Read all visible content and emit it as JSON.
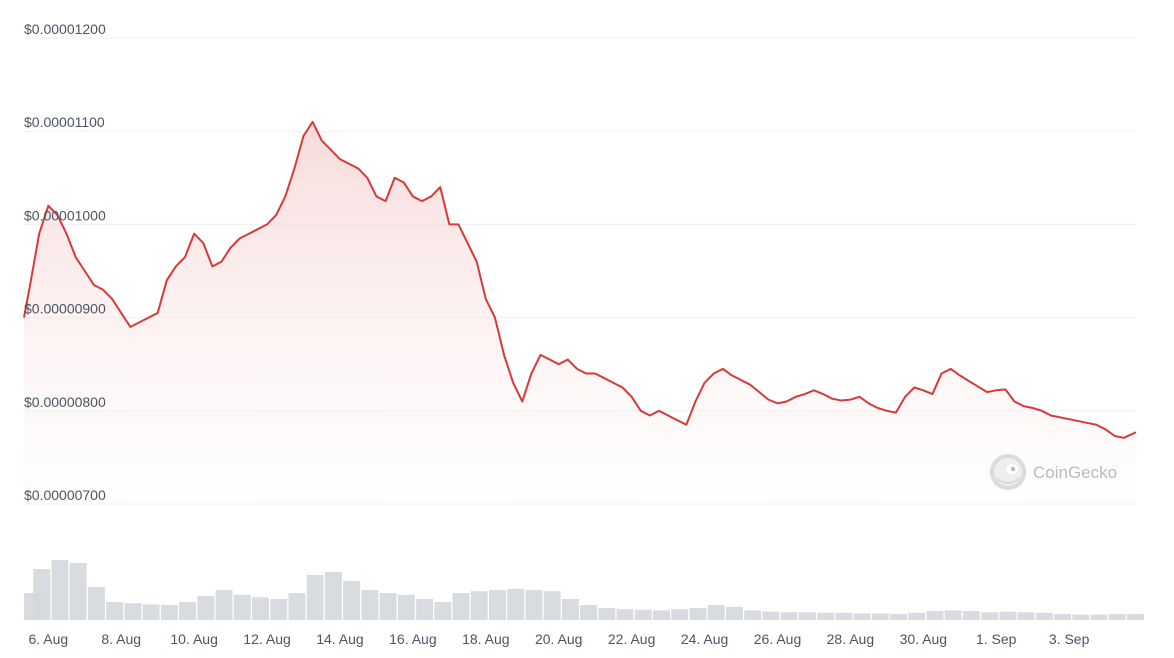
{
  "watermark": {
    "text": "CoinGecko",
    "icon": "coingecko-logo"
  },
  "colors": {
    "line": "#d63a3a",
    "area_top": "#f6d4d4",
    "volume": "#d4d7dc",
    "grid": "#eef0f3",
    "text": "#4b5563"
  },
  "chart_data": {
    "type": "area",
    "xaxis_type": "date",
    "y_tick_labels": [
      "$0.00001200",
      "$0.00001100",
      "$0.00001000",
      "$0.00000900",
      "$0.00000800",
      "$0.00000700"
    ],
    "y_tick_values": [
      1.2e-05,
      1.1e-05,
      1e-05,
      9e-06,
      8e-06,
      7e-06
    ],
    "ylim": [
      7e-06,
      1.2e-05
    ],
    "x_tick_labels": [
      "6. Aug",
      "8. Aug",
      "10. Aug",
      "12. Aug",
      "14. Aug",
      "16. Aug",
      "18. Aug",
      "20. Aug",
      "22. Aug",
      "24. Aug",
      "26. Aug",
      "28. Aug",
      "30. Aug",
      "1. Sep",
      "3. Sep"
    ],
    "x_tick_dates": [
      "2024-08-06",
      "2024-08-08",
      "2024-08-10",
      "2024-08-12",
      "2024-08-14",
      "2024-08-16",
      "2024-08-18",
      "2024-08-20",
      "2024-08-22",
      "2024-08-24",
      "2024-08-26",
      "2024-08-28",
      "2024-08-30",
      "2024-09-01",
      "2024-09-03"
    ],
    "xlim": [
      "2024-08-05 08:00",
      "2024-09-04 20:00"
    ],
    "grid": true,
    "series": [
      {
        "kind": "price",
        "x": [
          "2024-08-05 08:00",
          "2024-08-05 12:00",
          "2024-08-05 18:00",
          "2024-08-06 00:00",
          "2024-08-06 06:00",
          "2024-08-06 12:00",
          "2024-08-06 18:00",
          "2024-08-07 00:00",
          "2024-08-07 06:00",
          "2024-08-07 12:00",
          "2024-08-07 18:00",
          "2024-08-08 00:00",
          "2024-08-08 06:00",
          "2024-08-08 12:00",
          "2024-08-08 18:00",
          "2024-08-09 00:00",
          "2024-08-09 06:00",
          "2024-08-09 12:00",
          "2024-08-09 18:00",
          "2024-08-10 00:00",
          "2024-08-10 06:00",
          "2024-08-10 12:00",
          "2024-08-10 18:00",
          "2024-08-11 00:00",
          "2024-08-11 06:00",
          "2024-08-11 12:00",
          "2024-08-11 18:00",
          "2024-08-12 00:00",
          "2024-08-12 06:00",
          "2024-08-12 12:00",
          "2024-08-12 18:00",
          "2024-08-13 00:00",
          "2024-08-13 06:00",
          "2024-08-13 12:00",
          "2024-08-13 18:00",
          "2024-08-14 00:00",
          "2024-08-14 06:00",
          "2024-08-14 12:00",
          "2024-08-14 18:00",
          "2024-08-15 00:00",
          "2024-08-15 06:00",
          "2024-08-15 12:00",
          "2024-08-15 18:00",
          "2024-08-16 00:00",
          "2024-08-16 06:00",
          "2024-08-16 12:00",
          "2024-08-16 18:00",
          "2024-08-17 00:00",
          "2024-08-17 06:00",
          "2024-08-17 12:00",
          "2024-08-17 18:00",
          "2024-08-18 00:00",
          "2024-08-18 06:00",
          "2024-08-18 12:00",
          "2024-08-18 18:00",
          "2024-08-19 00:00",
          "2024-08-19 06:00",
          "2024-08-19 12:00",
          "2024-08-19 18:00",
          "2024-08-20 00:00",
          "2024-08-20 06:00",
          "2024-08-20 12:00",
          "2024-08-20 18:00",
          "2024-08-21 00:00",
          "2024-08-21 06:00",
          "2024-08-21 12:00",
          "2024-08-21 18:00",
          "2024-08-22 00:00",
          "2024-08-22 06:00",
          "2024-08-22 12:00",
          "2024-08-22 18:00",
          "2024-08-23 00:00",
          "2024-08-23 06:00",
          "2024-08-23 12:00",
          "2024-08-23 18:00",
          "2024-08-24 00:00",
          "2024-08-24 06:00",
          "2024-08-24 12:00",
          "2024-08-24 18:00",
          "2024-08-25 00:00",
          "2024-08-25 06:00",
          "2024-08-25 12:00",
          "2024-08-25 18:00",
          "2024-08-26 00:00",
          "2024-08-26 06:00",
          "2024-08-26 12:00",
          "2024-08-26 18:00",
          "2024-08-27 00:00",
          "2024-08-27 06:00",
          "2024-08-27 12:00",
          "2024-08-27 18:00",
          "2024-08-28 00:00",
          "2024-08-28 06:00",
          "2024-08-28 12:00",
          "2024-08-28 18:00",
          "2024-08-29 00:00",
          "2024-08-29 06:00",
          "2024-08-29 12:00",
          "2024-08-29 18:00",
          "2024-08-30 00:00",
          "2024-08-30 06:00",
          "2024-08-30 12:00",
          "2024-08-30 18:00",
          "2024-08-31 00:00",
          "2024-08-31 06:00",
          "2024-08-31 12:00",
          "2024-08-31 18:00",
          "2024-09-01 00:00",
          "2024-09-01 06:00",
          "2024-09-01 12:00",
          "2024-09-01 18:00",
          "2024-09-02 00:00",
          "2024-09-02 06:00",
          "2024-09-02 12:00",
          "2024-09-02 18:00",
          "2024-09-03 00:00",
          "2024-09-03 06:00",
          "2024-09-03 12:00",
          "2024-09-03 18:00",
          "2024-09-04 00:00",
          "2024-09-04 06:00",
          "2024-09-04 12:00",
          "2024-09-04 20:00"
        ],
        "values": [
          9e-06,
          9.35e-06,
          9.9e-06,
          1.02e-05,
          1.01e-05,
          9.9e-06,
          9.65e-06,
          9.5e-06,
          9.35e-06,
          9.3e-06,
          9.2e-06,
          9.05e-06,
          8.9e-06,
          8.95e-06,
          9e-06,
          9.05e-06,
          9.4e-06,
          9.55e-06,
          9.65e-06,
          9.9e-06,
          9.8e-06,
          9.55e-06,
          9.6e-06,
          9.75e-06,
          9.85e-06,
          9.9e-06,
          9.95e-06,
          1e-05,
          1.01e-05,
          1.03e-05,
          1.06e-05,
          1.095e-05,
          1.11e-05,
          1.09e-05,
          1.08e-05,
          1.07e-05,
          1.065e-05,
          1.06e-05,
          1.05e-05,
          1.03e-05,
          1.025e-05,
          1.05e-05,
          1.045e-05,
          1.03e-05,
          1.025e-05,
          1.03e-05,
          1.04e-05,
          1e-05,
          1e-05,
          9.8e-06,
          9.6e-06,
          9.2e-06,
          9e-06,
          8.6e-06,
          8.3e-06,
          8.1e-06,
          8.4e-06,
          8.6e-06,
          8.55e-06,
          8.5e-06,
          8.55e-06,
          8.45e-06,
          8.4e-06,
          8.4e-06,
          8.35e-06,
          8.3e-06,
          8.25e-06,
          8.15e-06,
          8e-06,
          7.95e-06,
          8e-06,
          7.95e-06,
          7.9e-06,
          7.85e-06,
          8.1e-06,
          8.3e-06,
          8.4e-06,
          8.45e-06,
          8.38e-06,
          8.33e-06,
          8.28e-06,
          8.2e-06,
          8.12e-06,
          8.08e-06,
          8.1e-06,
          8.15e-06,
          8.18e-06,
          8.22e-06,
          8.18e-06,
          8.13e-06,
          8.11e-06,
          8.12e-06,
          8.15e-06,
          8.08e-06,
          8.03e-06,
          8e-06,
          7.98e-06,
          8.15e-06,
          8.25e-06,
          8.22e-06,
          8.18e-06,
          8.4e-06,
          8.45e-06,
          8.38e-06,
          8.32e-06,
          8.26e-06,
          8.2e-06,
          8.22e-06,
          8.23e-06,
          8.1e-06,
          8.05e-06,
          8.03e-06,
          8e-06,
          7.95e-06,
          7.93e-06,
          7.91e-06,
          7.89e-06,
          7.87e-06,
          7.85e-06,
          7.8e-06,
          7.73e-06,
          7.71e-06,
          7.77e-06
        ]
      },
      {
        "kind": "volume",
        "x": [
          "2024-08-05 08:00",
          "2024-08-05 20:00",
          "2024-08-06 08:00",
          "2024-08-06 20:00",
          "2024-08-07 08:00",
          "2024-08-07 20:00",
          "2024-08-08 08:00",
          "2024-08-08 20:00",
          "2024-08-09 08:00",
          "2024-08-09 20:00",
          "2024-08-10 08:00",
          "2024-08-10 20:00",
          "2024-08-11 08:00",
          "2024-08-11 20:00",
          "2024-08-12 08:00",
          "2024-08-12 20:00",
          "2024-08-13 08:00",
          "2024-08-13 20:00",
          "2024-08-14 08:00",
          "2024-08-14 20:00",
          "2024-08-15 08:00",
          "2024-08-15 20:00",
          "2024-08-16 08:00",
          "2024-08-16 20:00",
          "2024-08-17 08:00",
          "2024-08-17 20:00",
          "2024-08-18 08:00",
          "2024-08-18 20:00",
          "2024-08-19 08:00",
          "2024-08-19 20:00",
          "2024-08-20 08:00",
          "2024-08-20 20:00",
          "2024-08-21 08:00",
          "2024-08-21 20:00",
          "2024-08-22 08:00",
          "2024-08-22 20:00",
          "2024-08-23 08:00",
          "2024-08-23 20:00",
          "2024-08-24 08:00",
          "2024-08-24 20:00",
          "2024-08-25 08:00",
          "2024-08-25 20:00",
          "2024-08-26 08:00",
          "2024-08-26 20:00",
          "2024-08-27 08:00",
          "2024-08-27 20:00",
          "2024-08-28 08:00",
          "2024-08-28 20:00",
          "2024-08-29 08:00",
          "2024-08-29 20:00",
          "2024-08-30 08:00",
          "2024-08-30 20:00",
          "2024-08-31 08:00",
          "2024-08-31 20:00",
          "2024-09-01 08:00",
          "2024-09-01 20:00",
          "2024-09-02 08:00",
          "2024-09-02 20:00",
          "2024-09-03 08:00",
          "2024-09-03 20:00",
          "2024-09-04 08:00",
          "2024-09-04 20:00"
        ],
        "values": [
          0.45,
          0.85,
          1.0,
          0.95,
          0.55,
          0.3,
          0.28,
          0.26,
          0.25,
          0.3,
          0.4,
          0.5,
          0.42,
          0.38,
          0.35,
          0.45,
          0.75,
          0.8,
          0.65,
          0.5,
          0.45,
          0.42,
          0.35,
          0.3,
          0.45,
          0.48,
          0.5,
          0.52,
          0.5,
          0.48,
          0.35,
          0.25,
          0.2,
          0.18,
          0.17,
          0.16,
          0.18,
          0.2,
          0.25,
          0.22,
          0.16,
          0.14,
          0.13,
          0.13,
          0.12,
          0.12,
          0.11,
          0.11,
          0.1,
          0.12,
          0.15,
          0.16,
          0.15,
          0.13,
          0.14,
          0.13,
          0.12,
          0.1,
          0.09,
          0.09,
          0.1,
          0.1
        ]
      }
    ]
  }
}
